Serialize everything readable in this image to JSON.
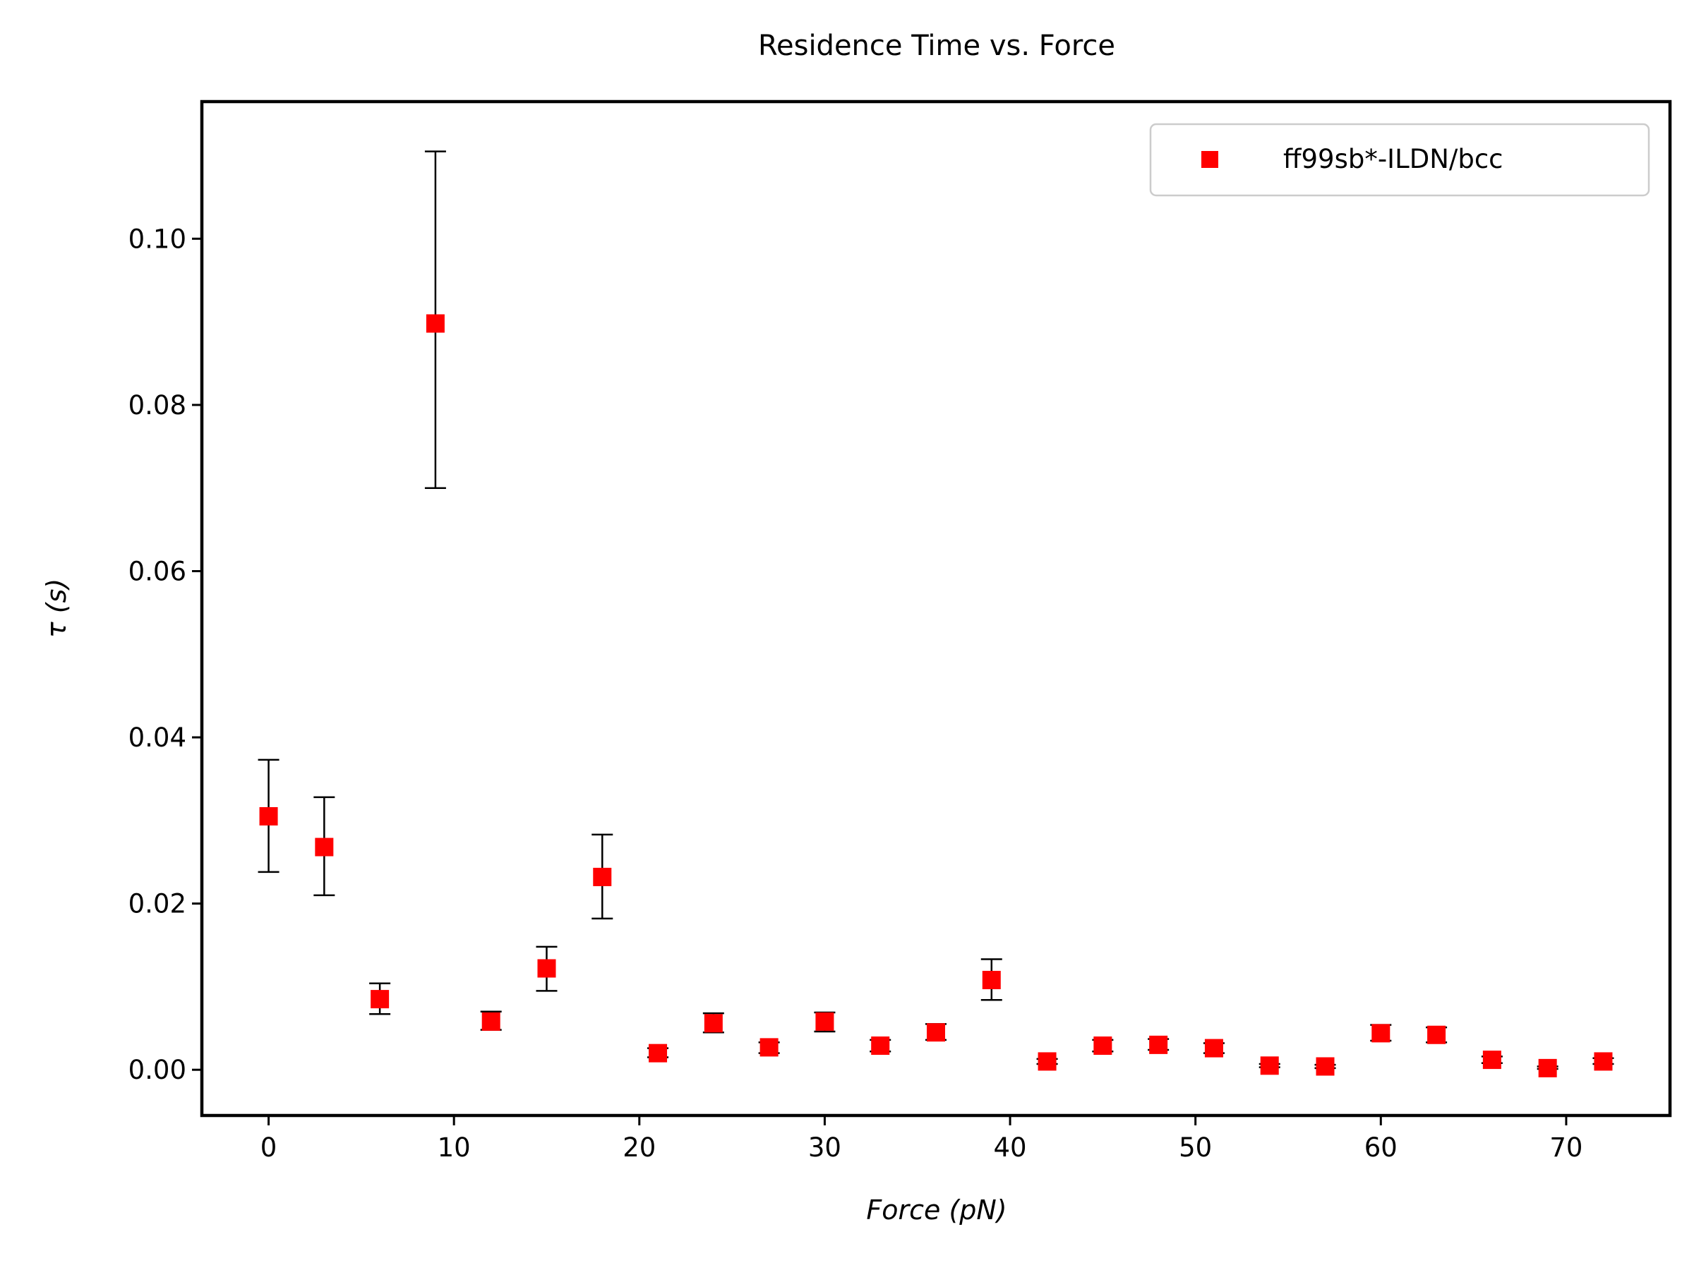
{
  "chart_data": {
    "type": "scatter",
    "title": "Residence Time vs. Force",
    "xlabel": "Force (pN)",
    "ylabel": "τ (s)",
    "xlim": [
      -3.6,
      75.6
    ],
    "ylim": [
      -0.0055,
      0.1165
    ],
    "xticks": [
      0,
      10,
      20,
      30,
      40,
      50,
      60,
      70
    ],
    "yticks": [
      0.0,
      0.02,
      0.04,
      0.06,
      0.08,
      0.1
    ],
    "ytick_labels": [
      "0.00",
      "0.02",
      "0.04",
      "0.06",
      "0.08",
      "0.10"
    ],
    "grid": false,
    "legend_position": "top-right",
    "marker_color": "#ff0000",
    "errorbar_color": "#000000",
    "series": [
      {
        "name": "ff99sb*-ILDN/bcc",
        "x": [
          0,
          3,
          6,
          9,
          12,
          15,
          18,
          21,
          24,
          27,
          30,
          33,
          36,
          39,
          42,
          45,
          48,
          51,
          54,
          57,
          60,
          63,
          66,
          69,
          72
        ],
        "y": [
          0.0305,
          0.0268,
          0.0085,
          0.0898,
          0.0058,
          0.0122,
          0.0232,
          0.002,
          0.0056,
          0.0027,
          0.0058,
          0.0029,
          0.0045,
          0.0108,
          0.001,
          0.0029,
          0.003,
          0.0026,
          0.0005,
          0.0004,
          0.0044,
          0.0042,
          0.0012,
          0.0002,
          0.001
        ],
        "yerr_low": [
          0.0238,
          0.021,
          0.0067,
          0.07,
          0.0048,
          0.0095,
          0.0182,
          0.0015,
          0.0045,
          0.002,
          0.0046,
          0.0022,
          0.0036,
          0.0084,
          0.0007,
          0.0022,
          0.0024,
          0.002,
          0.0003,
          0.0002,
          0.0035,
          0.0033,
          0.0008,
          0.0001,
          0.0007
        ],
        "yerr_high": [
          0.0373,
          0.0328,
          0.0104,
          0.1105,
          0.007,
          0.0148,
          0.0283,
          0.0026,
          0.0068,
          0.0033,
          0.0069,
          0.0036,
          0.0055,
          0.0133,
          0.0013,
          0.0036,
          0.0037,
          0.0032,
          0.0007,
          0.0006,
          0.0054,
          0.0051,
          0.0016,
          0.0004,
          0.0014
        ]
      }
    ]
  }
}
